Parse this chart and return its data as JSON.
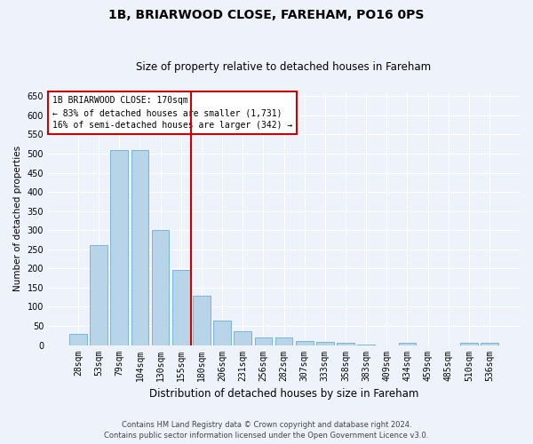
{
  "title": "1B, BRIARWOOD CLOSE, FAREHAM, PO16 0PS",
  "subtitle": "Size of property relative to detached houses in Fareham",
  "xlabel": "Distribution of detached houses by size in Fareham",
  "ylabel": "Number of detached properties",
  "categories": [
    "28sqm",
    "53sqm",
    "79sqm",
    "104sqm",
    "130sqm",
    "155sqm",
    "180sqm",
    "206sqm",
    "231sqm",
    "256sqm",
    "282sqm",
    "307sqm",
    "333sqm",
    "358sqm",
    "383sqm",
    "409sqm",
    "434sqm",
    "459sqm",
    "485sqm",
    "510sqm",
    "536sqm"
  ],
  "values": [
    30,
    260,
    510,
    510,
    300,
    195,
    130,
    65,
    35,
    20,
    20,
    10,
    8,
    5,
    2,
    0,
    5,
    0,
    0,
    5,
    5
  ],
  "bar_color": "#b8d4e8",
  "bar_edge_color": "#6aaed6",
  "background_color": "#eef2fa",
  "grid_color": "#ffffff",
  "vline_x_index": 5.5,
  "vline_color": "#cc0000",
  "annotation_text": "1B BRIARWOOD CLOSE: 170sqm\n← 83% of detached houses are smaller (1,731)\n16% of semi-detached houses are larger (342) →",
  "annotation_box_color": "#ffffff",
  "annotation_box_edge_color": "#cc0000",
  "footer_line1": "Contains HM Land Registry data © Crown copyright and database right 2024.",
  "footer_line2": "Contains public sector information licensed under the Open Government Licence v3.0.",
  "ylim": [
    0,
    660
  ],
  "yticks": [
    0,
    50,
    100,
    150,
    200,
    250,
    300,
    350,
    400,
    450,
    500,
    550,
    600,
    650
  ],
  "title_fontsize": 10,
  "subtitle_fontsize": 8.5,
  "ylabel_fontsize": 7.5,
  "xlabel_fontsize": 8.5,
  "tick_fontsize": 7,
  "annotation_fontsize": 7,
  "footer_fontsize": 6
}
